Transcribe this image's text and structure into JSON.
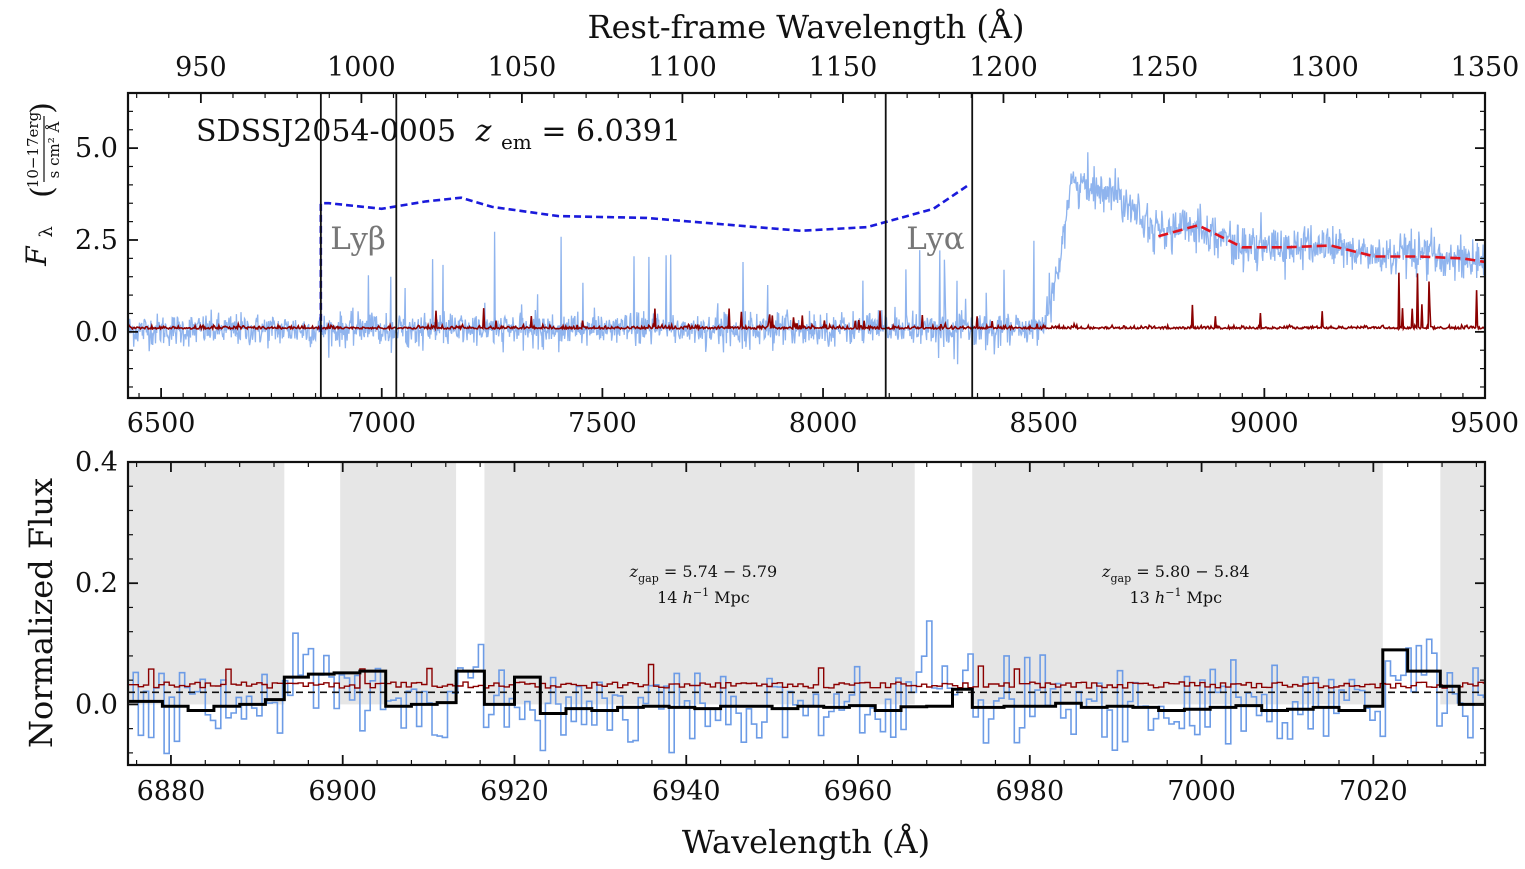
{
  "chart_data": [
    {
      "type": "line",
      "top_xlabel": "Rest-frame Wavelength (Å)",
      "top_ticks": [
        950,
        1000,
        1050,
        1100,
        1150,
        1200,
        1250,
        1300,
        1350
      ],
      "top_xlim": [
        927.3,
        1350.0
      ],
      "xlim": [
        6425,
        9500
      ],
      "ylim": [
        -1.8,
        6.5
      ],
      "xticks": [
        6500,
        7000,
        7500,
        8000,
        8500,
        9000,
        9500
      ],
      "yticks": [
        "0.0",
        "2.5",
        "5.0"
      ],
      "yticks_values": [
        0.0,
        2.5,
        5.0
      ],
      "ylabel_main": "F",
      "ylabel_sub": "λ",
      "ylabel_unit_num": "10−17erg",
      "ylabel_unit_den": "s cm² Å",
      "annotation_prefix": "SDSSJ2054-0005",
      "annotation_z": "z",
      "annotation_z_sub": "em",
      "annotation_value": " = 6.0391",
      "vlines": [
        {
          "x": 6862,
          "label": ""
        },
        {
          "x": 7033,
          "label": "Lyβ"
        },
        {
          "x": 8142,
          "label": ""
        },
        {
          "x": 8338,
          "label": "Lyα"
        }
      ],
      "continuum_prediction": {
        "x": [
          6862,
          6880,
          7000,
          7100,
          7180,
          7250,
          7400,
          7600,
          7800,
          7950,
          8100,
          8250,
          8330
        ],
        "y": [
          3.5,
          3.5,
          3.35,
          3.55,
          3.65,
          3.4,
          3.15,
          3.1,
          2.9,
          2.75,
          2.85,
          3.35,
          4.0
        ]
      },
      "continuum_fit": {
        "x": [
          8760,
          8850,
          8950,
          9050,
          9150,
          9250,
          9350,
          9450,
          9500
        ],
        "y": [
          2.6,
          2.9,
          2.3,
          2.3,
          2.35,
          2.05,
          2.05,
          2.0,
          1.9
        ]
      }
    },
    {
      "type": "line",
      "xlabel": "Wavelength (Å)",
      "ylabel": "Normalized Flux",
      "xlim": [
        6875,
        7033
      ],
      "ylim": [
        -0.1,
        0.4
      ],
      "xticks": [
        6880,
        6900,
        6920,
        6940,
        6960,
        6980,
        7000,
        7020
      ],
      "yticks": [
        "0.0",
        "0.2",
        "0.4"
      ],
      "yticks_values": [
        0.0,
        0.2,
        0.4
      ],
      "reference_line": 0.02,
      "shaded_regions": [
        [
          6875,
          6893.2
        ],
        [
          6899.7,
          6913.2
        ],
        [
          6916.5,
          6966.6
        ],
        [
          6973.3,
          7021.1
        ],
        [
          7027.8,
          7033
        ]
      ],
      "gap_labels": [
        {
          "x": 6942,
          "y": 0.21,
          "line1_z": "z",
          "line1_sub": "gap",
          "line1_rest": " = 5.74 − 5.79",
          "line2_pre": "14 ",
          "line2_h": "h",
          "line2_sup": "−1",
          "line2_post": " Mpc"
        },
        {
          "x": 6997,
          "y": 0.21,
          "line1_z": "z",
          "line1_sub": "gap",
          "line1_rest": " = 5.80 − 5.84",
          "line2_pre": "13 ",
          "line2_h": "h",
          "line2_sup": "−1",
          "line2_post": " Mpc"
        }
      ],
      "binned_flux": {
        "edges": [
          6875,
          6879,
          6882,
          6885,
          6888,
          6891,
          6893.2,
          6896,
          6899,
          6902,
          6905,
          6908,
          6911,
          6913.2,
          6916.5,
          6920,
          6923,
          6926,
          6929,
          6932,
          6935,
          6938,
          6941,
          6944,
          6947,
          6950,
          6953,
          6956,
          6959,
          6962,
          6965,
          6968,
          6971,
          6973.3,
          6977,
          6980,
          6983,
          6986,
          6989,
          6992,
          6995,
          6998,
          7001,
          7004,
          7007,
          7010,
          7013,
          7016,
          7019,
          7021.1,
          7024,
          7027.8,
          7030,
          7033
        ],
        "values": [
          0.005,
          -0.003,
          -0.01,
          -0.003,
          0.0,
          0.008,
          0.045,
          0.05,
          0.052,
          0.055,
          -0.003,
          0.0,
          0.003,
          0.055,
          0.0,
          0.045,
          -0.015,
          -0.007,
          -0.01,
          -0.005,
          -0.003,
          -0.005,
          -0.007,
          -0.003,
          -0.003,
          -0.007,
          -0.003,
          -0.005,
          -0.002,
          -0.01,
          -0.004,
          -0.003,
          0.025,
          -0.005,
          -0.003,
          -0.003,
          0.002,
          -0.005,
          -0.003,
          -0.005,
          -0.01,
          -0.008,
          -0.005,
          -0.002,
          -0.01,
          -0.008,
          -0.005,
          -0.01,
          -0.003,
          0.09,
          0.055,
          0.03,
          0.0
        ]
      }
    }
  ]
}
